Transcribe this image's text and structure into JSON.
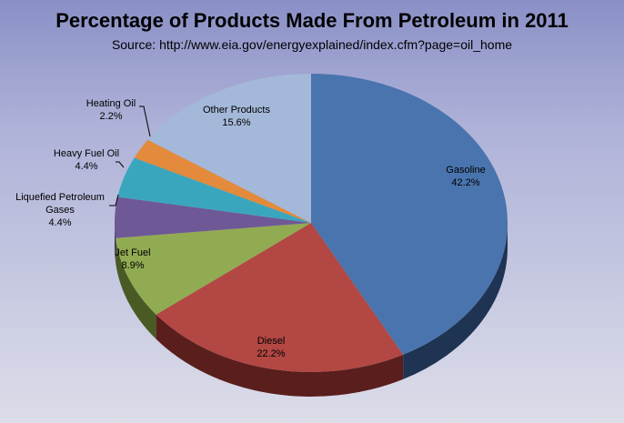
{
  "chart_data": {
    "type": "pie",
    "title": "Percentage of Products Made From Petroleum in 2011",
    "subtitle": "Source:   http://www.eia.gov/energyexplained/index.cfm?page=oil_home",
    "slices": [
      {
        "label": "Gasoline",
        "value": 42.2,
        "display": "42.2%",
        "color": "#4a74ad",
        "side": "#1f3352"
      },
      {
        "label": "Diesel",
        "value": 22.2,
        "display": "22.2%",
        "color": "#b24743",
        "side": "#5a1e1c"
      },
      {
        "label": "Jet Fuel",
        "value": 8.9,
        "display": "8.9%",
        "color": "#91ab52",
        "side": "#4a5a25"
      },
      {
        "label": "Liquefied Petroleum Gases",
        "value": 4.4,
        "display": "4.4%",
        "color": "#6f5896",
        "side": "#3a2c52"
      },
      {
        "label": "Heavy Fuel Oil",
        "value": 4.4,
        "display": "4.4%",
        "color": "#3aa6be",
        "side": "#1b5461"
      },
      {
        "label": "Heating Oil",
        "value": 2.2,
        "display": "2.2%",
        "color": "#e38a3c",
        "side": "#7a451a"
      },
      {
        "label": "Other Products",
        "value": 15.6,
        "display": "15.6%",
        "color": "#a4b8d9",
        "side": "#5b6782"
      }
    ]
  }
}
